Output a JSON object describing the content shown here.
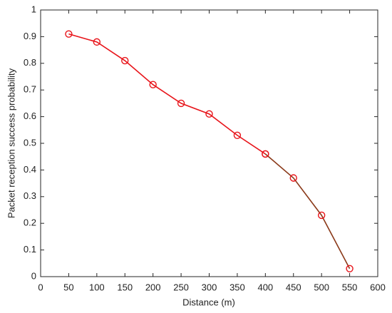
{
  "chart_data": {
    "type": "line",
    "xlabel": "Distance (m)",
    "ylabel": "Packet reception success probability",
    "series": [
      {
        "color": "#e8141a",
        "marker_color": "#e8141a",
        "x": [
          50,
          100,
          150,
          200,
          250,
          300,
          350,
          400
        ],
        "values": [
          0.91,
          0.88,
          0.81,
          0.72,
          0.65,
          0.61,
          0.53,
          0.46
        ]
      },
      {
        "color": "#8b3a1a",
        "marker_color": "#e8141a",
        "x": [
          400,
          450,
          500,
          550
        ],
        "values": [
          0.46,
          0.37,
          0.23,
          0.03
        ]
      }
    ],
    "xlim": [
      0,
      600
    ],
    "xticks": [
      0,
      50,
      100,
      150,
      200,
      250,
      300,
      350,
      400,
      450,
      500,
      550,
      600
    ],
    "ylim": [
      0,
      1
    ],
    "yticks": [
      0,
      0.1,
      0.2,
      0.3,
      0.4,
      0.5,
      0.6,
      0.7,
      0.8,
      0.9,
      1
    ],
    "grid": false
  }
}
